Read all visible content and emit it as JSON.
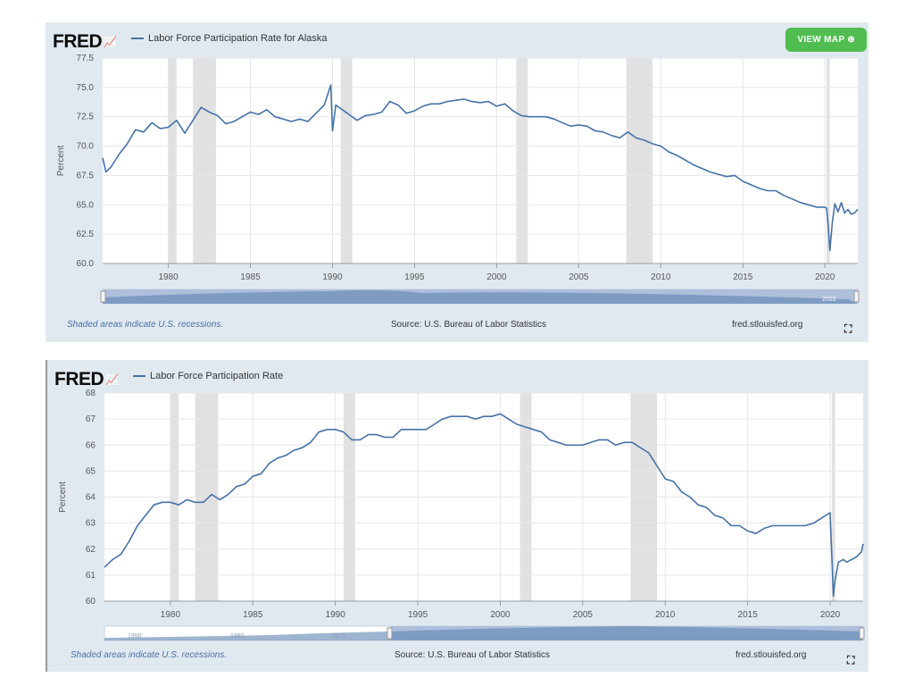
{
  "charts": [
    {
      "logo": "FRED",
      "title": "Labor Force Participation Rate for Alaska",
      "button": "VIEW MAP",
      "footer_note": "Shaded areas indicate U.S. recessions.",
      "footer_source": "Source: U.S. Bureau of Labor Statistics",
      "footer_site": "fred.stlouisfed.org",
      "nav_year_label": "2020"
    },
    {
      "logo": "FRED",
      "title": "Labor Force Participation Rate",
      "footer_note": "Shaded areas indicate U.S. recessions.",
      "footer_source": "Source: U.S. Bureau of Labor Statistics",
      "footer_site": "fred.stlouisfed.org",
      "nav_year_labels": [
        "1950",
        "1960",
        "1970"
      ]
    }
  ],
  "colors": {
    "line": "#4572a7",
    "recession": "#e1e1e1",
    "panel": "#e1e9f0",
    "button": "#4fbd4f"
  },
  "chart_data": [
    {
      "type": "line",
      "title": "Labor Force Participation Rate for Alaska",
      "ylabel": "Percent",
      "xlabel": "",
      "xlim": [
        1976,
        2022
      ],
      "ylim": [
        60.0,
        77.5
      ],
      "yticks": [
        "60.0",
        "62.5",
        "65.0",
        "67.5",
        "70.0",
        "72.5",
        "75.0",
        "77.5"
      ],
      "xticks": [
        "1980",
        "1985",
        "1990",
        "1995",
        "2000",
        "2005",
        "2010",
        "2015",
        "2020"
      ],
      "grid": true,
      "recessions": [
        [
          1980.0,
          1980.5
        ],
        [
          1981.5,
          1982.9
        ],
        [
          1990.5,
          1991.2
        ],
        [
          2001.2,
          2001.9
        ],
        [
          2007.9,
          2009.5
        ],
        [
          2020.1,
          2020.3
        ]
      ],
      "series": [
        {
          "x": [
            1976.0,
            1976.2,
            1976.5,
            1977.0,
            1977.5,
            1978.0,
            1978.5,
            1979.0,
            1979.5,
            1980.0,
            1980.5,
            1981.0,
            1981.5,
            1982.0,
            1982.5,
            1983.0,
            1983.5,
            1984.0,
            1984.5,
            1985.0,
            1985.5,
            1986.0,
            1986.5,
            1987.0,
            1987.5,
            1988.0,
            1988.5,
            1989.0,
            1989.5,
            1989.9,
            1990.0,
            1990.2,
            1990.6,
            1991.0,
            1991.5,
            1992.0,
            1992.5,
            1993.0,
            1993.5,
            1994.0,
            1994.5,
            1995.0,
            1995.5,
            1996.0,
            1996.5,
            1997.0,
            1997.5,
            1998.0,
            1998.5,
            1999.0,
            1999.5,
            2000.0,
            2000.5,
            2001.0,
            2001.5,
            2002.0,
            2003.0,
            2003.5,
            2004.0,
            2004.5,
            2005.0,
            2005.5,
            2006.0,
            2006.5,
            2007.0,
            2007.5,
            2008.0,
            2008.5,
            2009.0,
            2009.5,
            2010.0,
            2010.5,
            2011.0,
            2011.5,
            2012.0,
            2012.5,
            2013.0,
            2013.5,
            2014.0,
            2014.5,
            2015.0,
            2015.5,
            2016.0,
            2016.5,
            2017.0,
            2017.5,
            2018.0,
            2018.5,
            2019.0,
            2019.5,
            2020.0,
            2020.1,
            2020.2,
            2020.3,
            2020.45,
            2020.6,
            2020.8,
            2021.0,
            2021.2,
            2021.4,
            2021.6,
            2021.8,
            2022.0
          ],
          "values": [
            69.0,
            67.8,
            68.2,
            69.3,
            70.2,
            71.4,
            71.2,
            72.0,
            71.5,
            71.6,
            72.2,
            71.1,
            72.2,
            73.3,
            72.9,
            72.6,
            71.9,
            72.1,
            72.5,
            72.9,
            72.7,
            73.1,
            72.5,
            72.3,
            72.1,
            72.3,
            72.1,
            72.8,
            73.5,
            75.2,
            71.3,
            73.5,
            73.1,
            72.7,
            72.2,
            72.6,
            72.7,
            72.9,
            73.8,
            73.5,
            72.8,
            73.0,
            73.4,
            73.6,
            73.6,
            73.8,
            73.9,
            74.0,
            73.8,
            73.7,
            73.8,
            73.4,
            73.6,
            73.0,
            72.6,
            72.5,
            72.5,
            72.3,
            72.0,
            71.7,
            71.8,
            71.7,
            71.3,
            71.2,
            70.9,
            70.7,
            71.2,
            70.7,
            70.5,
            70.2,
            70.0,
            69.5,
            69.2,
            68.8,
            68.4,
            68.1,
            67.8,
            67.6,
            67.4,
            67.5,
            67.0,
            66.7,
            66.4,
            66.2,
            66.2,
            65.8,
            65.5,
            65.2,
            65.0,
            64.8,
            64.8,
            64.7,
            63.2,
            61.1,
            63.5,
            65.1,
            64.4,
            65.2,
            64.3,
            64.6,
            64.2,
            64.3,
            64.6
          ]
        }
      ]
    },
    {
      "type": "line",
      "title": "Labor Force Participation Rate",
      "ylabel": "Percent",
      "xlabel": "",
      "xlim": [
        1976,
        2022
      ],
      "ylim": [
        60,
        68
      ],
      "yticks": [
        "60",
        "61",
        "62",
        "63",
        "64",
        "65",
        "66",
        "67",
        "68"
      ],
      "xticks": [
        "1980",
        "1985",
        "1990",
        "1995",
        "2000",
        "2005",
        "2010",
        "2015",
        "2020"
      ],
      "grid": true,
      "recessions": [
        [
          1980.0,
          1980.5
        ],
        [
          1981.5,
          1982.9
        ],
        [
          1990.5,
          1991.2
        ],
        [
          2001.2,
          2001.9
        ],
        [
          2007.9,
          2009.5
        ],
        [
          2020.1,
          2020.3
        ]
      ],
      "series": [
        {
          "x": [
            1976.0,
            1976.5,
            1977.0,
            1977.5,
            1978.0,
            1978.5,
            1979.0,
            1979.5,
            1980.0,
            1980.5,
            1981.0,
            1981.5,
            1982.0,
            1982.5,
            1983.0,
            1983.5,
            1984.0,
            1984.5,
            1985.0,
            1985.5,
            1986.0,
            1986.5,
            1987.0,
            1987.5,
            1988.0,
            1988.5,
            1989.0,
            1989.5,
            1990.0,
            1990.5,
            1991.0,
            1991.5,
            1992.0,
            1992.5,
            1993.0,
            1993.5,
            1994.0,
            1994.5,
            1995.0,
            1995.5,
            1996.0,
            1996.5,
            1997.0,
            1997.5,
            1998.0,
            1998.5,
            1999.0,
            1999.5,
            2000.0,
            2000.5,
            2001.0,
            2001.5,
            2002.0,
            2002.5,
            2003.0,
            2003.5,
            2004.0,
            2004.5,
            2005.0,
            2005.5,
            2006.0,
            2006.5,
            2007.0,
            2007.5,
            2008.0,
            2008.5,
            2009.0,
            2009.5,
            2010.0,
            2010.5,
            2011.0,
            2011.5,
            2012.0,
            2012.5,
            2013.0,
            2013.5,
            2014.0,
            2014.5,
            2015.0,
            2015.5,
            2016.0,
            2016.5,
            2017.0,
            2017.5,
            2018.0,
            2018.5,
            2019.0,
            2019.5,
            2020.0,
            2020.2,
            2020.3,
            2020.5,
            2020.8,
            2021.0,
            2021.3,
            2021.6,
            2021.9,
            2022.0
          ],
          "values": [
            61.3,
            61.6,
            61.8,
            62.3,
            62.9,
            63.3,
            63.7,
            63.8,
            63.8,
            63.7,
            63.9,
            63.8,
            63.8,
            64.1,
            63.9,
            64.1,
            64.4,
            64.5,
            64.8,
            64.9,
            65.3,
            65.5,
            65.6,
            65.8,
            65.9,
            66.1,
            66.5,
            66.6,
            66.6,
            66.5,
            66.2,
            66.2,
            66.4,
            66.4,
            66.3,
            66.3,
            66.6,
            66.6,
            66.6,
            66.6,
            66.8,
            67.0,
            67.1,
            67.1,
            67.1,
            67.0,
            67.1,
            67.1,
            67.2,
            67.0,
            66.8,
            66.7,
            66.6,
            66.5,
            66.2,
            66.1,
            66.0,
            66.0,
            66.0,
            66.1,
            66.2,
            66.2,
            66.0,
            66.1,
            66.1,
            65.9,
            65.7,
            65.2,
            64.7,
            64.6,
            64.2,
            64.0,
            63.7,
            63.6,
            63.3,
            63.2,
            62.9,
            62.9,
            62.7,
            62.6,
            62.8,
            62.9,
            62.9,
            62.9,
            62.9,
            62.9,
            63.0,
            63.2,
            63.4,
            60.2,
            60.8,
            61.5,
            61.6,
            61.5,
            61.6,
            61.7,
            61.9,
            62.2
          ]
        }
      ]
    }
  ]
}
